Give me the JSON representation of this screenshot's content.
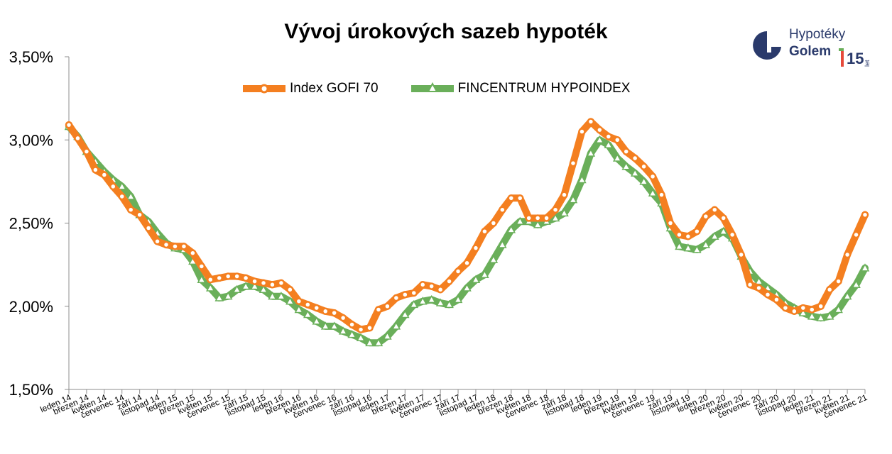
{
  "colors": {
    "gofi": "#f47f20",
    "fincentrum": "#6aaf5a",
    "axis": "#8c8c8c",
    "logo_blue": "#2a3a6b"
  },
  "logo": {
    "line1": "Hypotéky",
    "line2": "Golem",
    "badge": "15",
    "badge_sub": "let",
    "icon": "golem-g-logo-icon"
  },
  "chart_data": {
    "type": "line",
    "title": "Vývoj úrokových sazeb hypoték",
    "xlabel": "",
    "ylabel": "",
    "ylim": [
      1.5,
      3.5
    ],
    "ytick_values": [
      1.5,
      2.0,
      2.5,
      3.0,
      3.5
    ],
    "ytick_labels": [
      "1,50%",
      "2,00%",
      "2,50%",
      "3,00%",
      "3,50%"
    ],
    "grid": false,
    "legend_position": "top-center",
    "x_labels": [
      "leden 14",
      "březen 14",
      "květen 14",
      "červenec 14",
      "září 14",
      "listopad 14",
      "leden 15",
      "březen 15",
      "květen 15",
      "červenec 15",
      "září 15",
      "listopad 15",
      "leden 16",
      "březen 16",
      "květen 16",
      "červenec 16",
      "září 16",
      "listopad 16",
      "leden 17",
      "březen 17",
      "květen 17",
      "červenec 17",
      "září 17",
      "listopad 17",
      "leden 18",
      "březen 18",
      "květen 18",
      "červenec 18",
      "září 18",
      "listopad 18",
      "leden 19",
      "březen 19",
      "květen 19",
      "červenec 19",
      "září 19",
      "listopad 19",
      "leden 20",
      "březen 20",
      "květen 20",
      "červenec 20",
      "září 20",
      "listopad 20",
      "leden 21",
      "březen 21",
      "květen 21",
      "červenec 21"
    ],
    "series": [
      {
        "name": "Index GOFI 70",
        "marker": "circle",
        "values": [
          3.09,
          3.01,
          2.93,
          2.82,
          2.79,
          2.72,
          2.66,
          2.58,
          2.55,
          2.47,
          2.39,
          2.37,
          2.36,
          2.36,
          2.32,
          2.24,
          2.16,
          2.17,
          2.18,
          2.18,
          2.17,
          2.15,
          2.14,
          2.13,
          2.14,
          2.1,
          2.03,
          2.01,
          1.99,
          1.97,
          1.96,
          1.93,
          1.89,
          1.86,
          1.87,
          1.98,
          2.0,
          2.05,
          2.07,
          2.08,
          2.13,
          2.12,
          2.1,
          2.15,
          2.21,
          2.26,
          2.35,
          2.45,
          2.5,
          2.58,
          2.65,
          2.65,
          2.53,
          2.53,
          2.53,
          2.58,
          2.67,
          2.86,
          3.05,
          3.11,
          3.06,
          3.02,
          3.0,
          2.93,
          2.89,
          2.84,
          2.78,
          2.67,
          2.5,
          2.43,
          2.42,
          2.45,
          2.54,
          2.58,
          2.53,
          2.43,
          2.31,
          2.13,
          2.11,
          2.07,
          2.04,
          1.99,
          1.97,
          1.99,
          1.98,
          2.0,
          2.1,
          2.15,
          2.31,
          2.43,
          2.55
        ]
      },
      {
        "name": "FINCENTRUM HYPOINDEX",
        "marker": "triangle",
        "values": [
          3.08,
          3.02,
          2.93,
          2.87,
          2.81,
          2.76,
          2.72,
          2.66,
          2.55,
          2.51,
          2.44,
          2.38,
          2.35,
          2.34,
          2.27,
          2.16,
          2.11,
          2.05,
          2.06,
          2.1,
          2.12,
          2.12,
          2.1,
          2.06,
          2.06,
          2.03,
          1.98,
          1.95,
          1.91,
          1.88,
          1.88,
          1.85,
          1.83,
          1.81,
          1.78,
          1.78,
          1.82,
          1.88,
          1.95,
          2.01,
          2.03,
          2.04,
          2.02,
          2.01,
          2.04,
          2.11,
          2.16,
          2.19,
          2.28,
          2.37,
          2.46,
          2.51,
          2.51,
          2.49,
          2.51,
          2.53,
          2.56,
          2.64,
          2.76,
          2.92,
          3.0,
          2.97,
          2.89,
          2.84,
          2.8,
          2.75,
          2.68,
          2.62,
          2.47,
          2.36,
          2.35,
          2.34,
          2.37,
          2.42,
          2.45,
          2.41,
          2.3,
          2.21,
          2.15,
          2.11,
          2.07,
          2.02,
          1.99,
          1.96,
          1.94,
          1.93,
          1.94,
          1.98,
          2.06,
          2.13,
          2.23
        ]
      }
    ]
  }
}
